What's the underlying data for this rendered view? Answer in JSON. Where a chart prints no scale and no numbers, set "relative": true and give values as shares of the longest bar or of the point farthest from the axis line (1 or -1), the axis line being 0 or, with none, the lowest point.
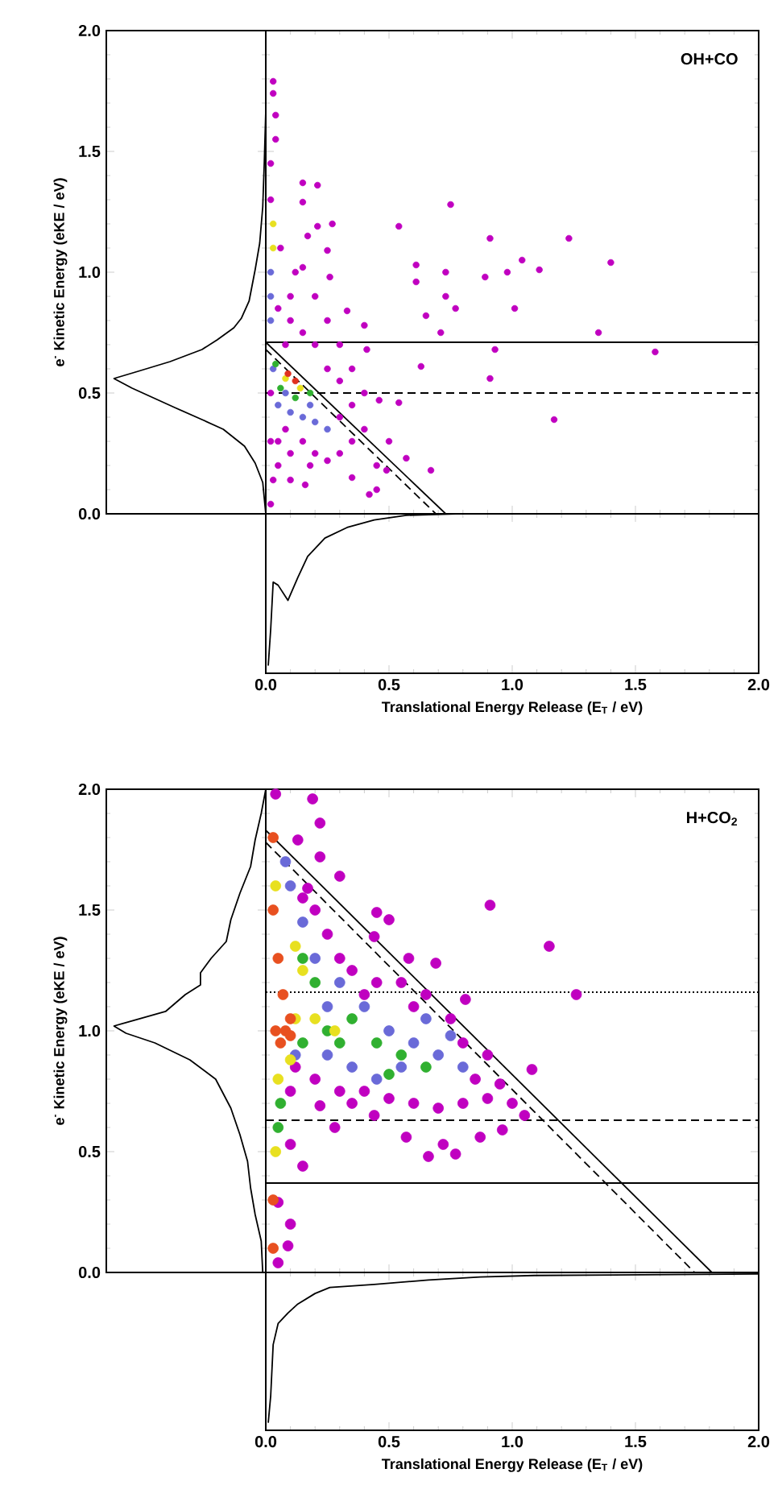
{
  "chart_data": [
    {
      "type": "scatter",
      "xlim": [
        0,
        2
      ],
      "ylim": [
        0,
        2
      ],
      "xticks": [
        {
          "value": 0,
          "label": null
        },
        {
          "value": 0.5,
          "label": null
        },
        {
          "value": 1,
          "label": null
        },
        {
          "value": 1.5,
          "label": null
        },
        {
          "value": 2,
          "label": null
        }
      ],
      "yticks": [
        {
          "value": 0,
          "label": null
        },
        {
          "value": 0.5,
          "label": null
        },
        {
          "value": 1,
          "label": null
        },
        {
          "value": 1.5,
          "label": null
        },
        {
          "value": 2,
          "label": null
        }
      ],
      "tick_labels": false,
      "marker": "circle",
      "annotations": [
        "OH+CO"
      ],
      "ref_lines": [
        {
          "axis": "y",
          "value": 0.71,
          "color": "#000000",
          "line_style": "solid"
        },
        {
          "axis": "y",
          "value": 0.5,
          "color": "#000000",
          "line_style": "dashed"
        }
      ],
      "series": [
        {
          "color": "#c000c0",
          "x": [
            0.75,
            1.23,
            1.4,
            0.91,
            0.54,
            0.61,
            0.61,
            0.73,
            0.73,
            0.77,
            0.89,
            0.98,
            1.04,
            1.11,
            1.01,
            0.65,
            0.71,
            1.35,
            0.93,
            1.58,
            0.91,
            1.17,
            0.63,
            0.54,
            0.46,
            0.33,
            0.4,
            0.41,
            0.21,
            0.15,
            0.15,
            0.21,
            0.27,
            0.17,
            0.25,
            0.26,
            0.15,
            0.04,
            0.04,
            0.03,
            0.03,
            0.57,
            0.67,
            0.49,
            0.42,
            0.35,
            0.16,
            0.1,
            0.02,
            0.03,
            0.05,
            0.1,
            0.15,
            0.2,
            0.25,
            0.3,
            0.35,
            0.3,
            0.35,
            0.4,
            0.3,
            0.25,
            0.2,
            0.15,
            0.1,
            0.05,
            0.1,
            0.25,
            0.3,
            0.35,
            0.05,
            0.02,
            0.02,
            0.02,
            0.02,
            0.08,
            0.4,
            0.45,
            0.5,
            0.45,
            0.2,
            0.12,
            0.06,
            0.08,
            0.18
          ],
          "values": [
            1.28,
            1.14,
            1.04,
            1.14,
            1.19,
            1.03,
            0.96,
            1.0,
            0.9,
            0.85,
            0.98,
            1.0,
            1.05,
            1.01,
            0.85,
            0.82,
            0.75,
            0.75,
            0.68,
            0.67,
            0.56,
            0.39,
            0.61,
            0.46,
            0.47,
            0.84,
            0.78,
            0.68,
            1.19,
            1.29,
            1.37,
            1.36,
            1.2,
            1.15,
            1.09,
            0.98,
            1.02,
            1.55,
            1.65,
            1.74,
            1.79,
            0.23,
            0.18,
            0.18,
            0.08,
            0.15,
            0.12,
            0.14,
            0.04,
            0.14,
            0.3,
            0.25,
            0.3,
            0.25,
            0.22,
            0.25,
            0.3,
            0.4,
            0.45,
            0.5,
            0.55,
            0.6,
            0.7,
            0.75,
            0.8,
            0.85,
            0.9,
            0.8,
            0.7,
            0.6,
            0.2,
            0.3,
            0.5,
            1.3,
            1.45,
            0.7,
            0.35,
            0.2,
            0.3,
            0.1,
            0.9,
            1.0,
            1.1,
            0.35,
            0.2
          ]
        },
        {
          "color": "#6a6ad8",
          "x": [
            0.05,
            0.1,
            0.15,
            0.2,
            0.08,
            0.18,
            0.03,
            0.25,
            0.02,
            0.02,
            0.02
          ],
          "values": [
            0.45,
            0.42,
            0.4,
            0.38,
            0.5,
            0.45,
            0.6,
            0.35,
            0.9,
            1.0,
            0.8
          ]
        },
        {
          "color": "#30b030",
          "x": [
            0.06,
            0.12,
            0.18,
            0.04
          ],
          "values": [
            0.52,
            0.48,
            0.5,
            0.62
          ]
        },
        {
          "color": "#e8e020",
          "x": [
            0.08,
            0.14,
            0.03,
            0.03
          ],
          "values": [
            0.56,
            0.52,
            1.1,
            1.2
          ]
        },
        {
          "color": "#e03020",
          "x": [
            0.09,
            0.12
          ],
          "values": [
            0.58,
            0.55
          ]
        },
        {
          "type": "line",
          "marker": "none",
          "line_style": "solid",
          "color": "#000000",
          "x": [
            0,
            0.73
          ],
          "values": [
            0.71,
            0
          ]
        },
        {
          "type": "line",
          "marker": "none",
          "line_style": "dashed",
          "color": "#000000",
          "x": [
            0,
            0.69
          ],
          "values": [
            0.68,
            0
          ]
        }
      ]
    },
    {
      "type": "line",
      "orientation": "horizontal",
      "relative": true,
      "ylim": [
        0,
        2
      ],
      "yticks": [
        {
          "value": 0,
          "label": "0.0"
        },
        {
          "value": 0.5,
          "label": "0.5"
        },
        {
          "value": 1,
          "label": "1.0"
        },
        {
          "value": 1.5,
          "label": "1.5"
        },
        {
          "value": 2,
          "label": "2.0"
        }
      ],
      "tick_labels": "y",
      "ylabel": "e$^{-}$ Kinetic Energy (eKE / eV)",
      "series": [
        {
          "color": "#000000",
          "x": [
            0,
            0.13,
            0.21,
            0.28,
            0.35,
            0.39,
            0.44,
            0.48,
            0.52,
            0.56,
            0.59,
            0.63,
            0.68,
            0.72,
            0.77,
            0.81,
            0.88,
            1.01,
            1.12,
            1.27,
            1.45,
            1.67
          ],
          "values": [
            0,
            -0.02,
            -0.07,
            -0.14,
            -0.28,
            -0.42,
            -0.6,
            -0.74,
            -0.88,
            -1,
            -0.84,
            -0.63,
            -0.42,
            -0.32,
            -0.21,
            -0.16,
            -0.11,
            -0.07,
            -0.04,
            -0.02,
            -0.01,
            0
          ]
        }
      ]
    },
    {
      "type": "line",
      "relative": true,
      "xlim": [
        0,
        2
      ],
      "xticks": [
        {
          "value": 0,
          "label": "0.0"
        },
        {
          "value": 0.5,
          "label": "0.5"
        },
        {
          "value": 1,
          "label": "1.0"
        },
        {
          "value": 1.5,
          "label": "1.5"
        },
        {
          "value": 2,
          "label": "2.0"
        }
      ],
      "tick_labels": "x",
      "xlabel": "Translational Energy Release (E$_{T}$ / eV)",
      "series": [
        {
          "color": "#000000",
          "x": [
            0.01,
            0.02,
            0.03,
            0.05,
            0.09,
            0.13,
            0.17,
            0.24,
            0.33,
            0.44,
            0.57,
            0.77,
            1.09,
            2.0
          ],
          "values": [
            -1.0,
            -0.76,
            -0.45,
            -0.47,
            -0.57,
            -0.42,
            -0.28,
            -0.16,
            -0.09,
            -0.04,
            -0.01,
            0,
            0,
            0
          ]
        }
      ]
    },
    {
      "type": "scatter",
      "xlim": [
        0,
        2
      ],
      "ylim": [
        0,
        2
      ],
      "xticks": [
        {
          "value": 0,
          "label": null
        },
        {
          "value": 0.5,
          "label": null
        },
        {
          "value": 1,
          "label": null
        },
        {
          "value": 1.5,
          "label": null
        },
        {
          "value": 2,
          "label": null
        }
      ],
      "yticks": [
        {
          "value": 0,
          "label": null
        },
        {
          "value": 0.5,
          "label": null
        },
        {
          "value": 1,
          "label": null
        },
        {
          "value": 1.5,
          "label": null
        },
        {
          "value": 2,
          "label": null
        }
      ],
      "tick_labels": false,
      "marker": "circle",
      "annotations": [
        "H+CO$_{2}$"
      ],
      "ref_lines": [
        {
          "axis": "y",
          "value": 1.16,
          "color": "#000000",
          "line_style": "dotted"
        },
        {
          "axis": "y",
          "value": 0.63,
          "color": "#000000",
          "line_style": "dashed"
        },
        {
          "axis": "y",
          "value": 0.37,
          "color": "#000000",
          "line_style": "solid"
        }
      ],
      "series": [
        {
          "color": "#c000c0",
          "x": [
            0.91,
            1.15,
            1.26,
            1.08,
            0.81,
            0.69,
            0.58,
            0.45,
            0.5,
            0.44,
            0.3,
            0.22,
            0.19,
            0.04,
            0.22,
            0.13,
            0.17,
            0.66,
            0.77,
            0.72,
            0.87,
            0.96,
            0.57,
            0.44,
            0.28,
            0.22,
            0.15,
            0.1,
            0.1,
            0.09,
            0.05,
            0.05,
            0.6,
            0.7,
            0.8,
            0.9,
            1.0,
            0.95,
            0.85,
            0.9,
            0.8,
            0.75,
            0.65,
            0.55,
            0.45,
            0.35,
            0.3,
            0.25,
            0.2,
            0.15,
            0.3,
            0.4,
            0.5,
            0.2,
            0.12,
            0.1,
            0.4,
            0.6,
            1.05,
            0.35
          ],
          "values": [
            1.52,
            1.35,
            1.15,
            0.84,
            1.13,
            1.28,
            1.3,
            1.49,
            1.46,
            1.39,
            1.64,
            1.86,
            1.96,
            1.98,
            1.72,
            1.79,
            1.59,
            0.48,
            0.49,
            0.53,
            0.56,
            0.59,
            0.56,
            0.65,
            0.6,
            0.69,
            0.44,
            0.53,
            0.2,
            0.11,
            0.29,
            0.04,
            0.7,
            0.68,
            0.7,
            0.72,
            0.7,
            0.78,
            0.8,
            0.9,
            0.95,
            1.05,
            1.15,
            1.2,
            1.2,
            1.25,
            1.3,
            1.4,
            1.5,
            1.55,
            0.75,
            0.75,
            0.72,
            0.8,
            0.85,
            0.75,
            1.15,
            1.1,
            0.65,
            0.7
          ]
        },
        {
          "color": "#6a6ad8",
          "x": [
            0.3,
            0.4,
            0.5,
            0.6,
            0.7,
            0.8,
            0.55,
            0.45,
            0.35,
            0.25,
            0.2,
            0.15,
            0.65,
            0.75,
            0.1,
            0.08,
            0.25,
            0.12
          ],
          "values": [
            1.2,
            1.1,
            1.0,
            0.95,
            0.9,
            0.85,
            0.85,
            0.8,
            0.85,
            0.9,
            1.3,
            1.45,
            1.05,
            0.98,
            1.6,
            1.7,
            1.1,
            0.9
          ]
        },
        {
          "color": "#30b030",
          "x": [
            0.15,
            0.25,
            0.35,
            0.45,
            0.55,
            0.65,
            0.2,
            0.15,
            0.3,
            0.5,
            0.06,
            0.05
          ],
          "values": [
            0.95,
            1.0,
            1.05,
            0.95,
            0.9,
            0.85,
            1.2,
            1.3,
            0.95,
            0.82,
            0.7,
            0.6
          ]
        },
        {
          "color": "#e8e020",
          "x": [
            0.12,
            0.2,
            0.28,
            0.15,
            0.12,
            0.05,
            0.04,
            0.04,
            0.1
          ],
          "values": [
            1.05,
            1.05,
            1.0,
            1.25,
            1.35,
            0.8,
            0.5,
            1.6,
            0.88
          ]
        },
        {
          "color": "#e85020",
          "x": [
            0.08,
            0.1,
            0.07,
            0.06,
            0.1,
            0.05,
            0.04,
            0.03,
            0.03,
            0.03,
            0.03
          ],
          "values": [
            1.0,
            1.05,
            1.15,
            0.95,
            0.98,
            1.3,
            1.0,
            1.5,
            1.8,
            0.3,
            0.1
          ]
        },
        {
          "type": "line",
          "marker": "none",
          "line_style": "solid",
          "color": "#000000",
          "x": [
            0,
            1.81
          ],
          "values": [
            1.83,
            0
          ]
        },
        {
          "type": "line",
          "marker": "none",
          "line_style": "dashed",
          "color": "#000000",
          "x": [
            0,
            1.74
          ],
          "values": [
            1.78,
            0
          ]
        }
      ]
    },
    {
      "type": "line",
      "orientation": "horizontal",
      "relative": true,
      "ylim": [
        0,
        2
      ],
      "yticks": [
        {
          "value": 0,
          "label": "0.0"
        },
        {
          "value": 0.5,
          "label": "0.5"
        },
        {
          "value": 1,
          "label": "1.0"
        },
        {
          "value": 1.5,
          "label": "1.5"
        },
        {
          "value": 2,
          "label": "2.0"
        }
      ],
      "tick_labels": "y",
      "ylabel": "e$^{-}$ Kinetic Energy (eKE / eV)",
      "series": [
        {
          "color": "#000000",
          "x": [
            0,
            0.13,
            0.24,
            0.35,
            0.46,
            0.57,
            0.68,
            0.8,
            0.88,
            0.95,
            0.99,
            1.02,
            1.05,
            1.08,
            1.15,
            1.19,
            1.24,
            1.3,
            1.37,
            1.46,
            1.57,
            1.68,
            1.79,
            1.9,
            2.0
          ],
          "values": [
            -0.02,
            -0.03,
            -0.07,
            -0.1,
            -0.12,
            -0.17,
            -0.23,
            -0.33,
            -0.5,
            -0.73,
            -0.92,
            -1.0,
            -0.83,
            -0.66,
            -0.53,
            -0.43,
            -0.43,
            -0.36,
            -0.26,
            -0.23,
            -0.17,
            -0.1,
            -0.07,
            -0.03,
            0
          ]
        }
      ]
    },
    {
      "type": "line",
      "relative": true,
      "xlim": [
        0,
        2
      ],
      "xticks": [
        {
          "value": 0,
          "label": "0.0"
        },
        {
          "value": 0.5,
          "label": "0.5"
        },
        {
          "value": 1,
          "label": "1.0"
        },
        {
          "value": 1.5,
          "label": "1.5"
        },
        {
          "value": 2,
          "label": "2.0"
        }
      ],
      "tick_labels": "x",
      "xlabel": "Translational Energy Release (E$_{T}$ / eV)",
      "series": [
        {
          "color": "#000000",
          "x": [
            0.01,
            0.02,
            0.03,
            0.05,
            0.09,
            0.13,
            0.2,
            0.26,
            0.44,
            0.66,
            0.87,
            1.09,
            2.0
          ],
          "values": [
            -1.0,
            -0.82,
            -0.48,
            -0.34,
            -0.27,
            -0.21,
            -0.14,
            -0.1,
            -0.08,
            -0.05,
            -0.03,
            -0.02,
            -0.01
          ]
        }
      ]
    }
  ]
}
